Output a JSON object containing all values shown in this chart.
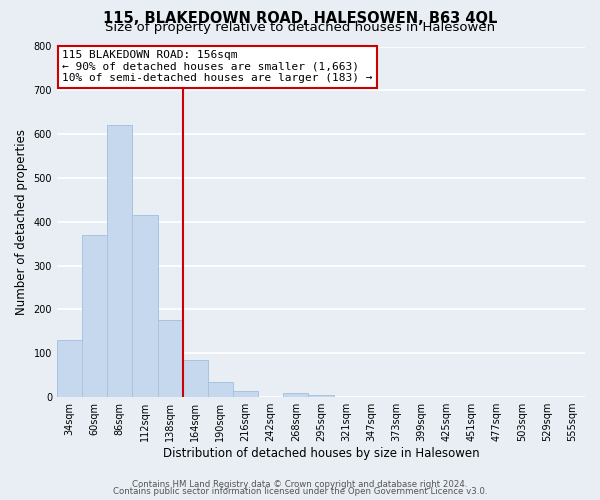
{
  "title_line1": "115, BLAKEDOWN ROAD, HALESOWEN, B63 4QL",
  "title_line2": "Size of property relative to detached houses in Halesowen",
  "xlabel": "Distribution of detached houses by size in Halesowen",
  "ylabel": "Number of detached properties",
  "bar_labels": [
    "34sqm",
    "60sqm",
    "86sqm",
    "112sqm",
    "138sqm",
    "164sqm",
    "190sqm",
    "216sqm",
    "242sqm",
    "268sqm",
    "295sqm",
    "321sqm",
    "347sqm",
    "373sqm",
    "399sqm",
    "425sqm",
    "451sqm",
    "477sqm",
    "503sqm",
    "529sqm",
    "555sqm"
  ],
  "bar_values": [
    130,
    370,
    620,
    415,
    175,
    85,
    35,
    15,
    0,
    10,
    5,
    0,
    0,
    0,
    0,
    0,
    0,
    0,
    0,
    0,
    0
  ],
  "bar_color": "#c5d8ed",
  "bar_edgecolor": "#a8c4de",
  "vline_x": 5,
  "vline_color": "#cc0000",
  "annotation_text": "115 BLAKEDOWN ROAD: 156sqm\n← 90% of detached houses are smaller (1,663)\n10% of semi-detached houses are larger (183) →",
  "annotation_box_color": "#ffffff",
  "annotation_box_edgecolor": "#cc0000",
  "ylim": [
    0,
    800
  ],
  "yticks": [
    0,
    100,
    200,
    300,
    400,
    500,
    600,
    700,
    800
  ],
  "footer_line1": "Contains HM Land Registry data © Crown copyright and database right 2024.",
  "footer_line2": "Contains public sector information licensed under the Open Government Licence v3.0.",
  "background_color": "#e8eef4",
  "plot_bg_color": "#e8eef4",
  "title_fontsize": 10.5,
  "subtitle_fontsize": 9.5,
  "annotation_fontsize": 8,
  "tick_fontsize": 7,
  "axis_label_fontsize": 8.5
}
